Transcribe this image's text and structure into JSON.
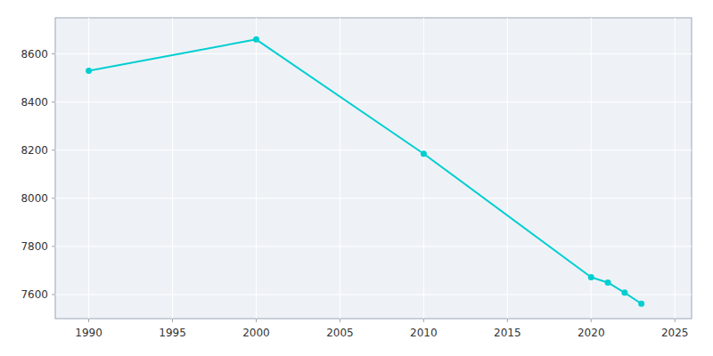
{
  "chart_data": {
    "type": "line",
    "x": [
      1990,
      2000,
      2010,
      2020,
      2021,
      2022,
      2023
    ],
    "values": [
      8530,
      8660,
      8185,
      7672,
      7650,
      7608,
      7562
    ],
    "color": "#00CED1",
    "marker": "circle",
    "xlim": [
      1988,
      2026
    ],
    "ylim": [
      7500,
      8750
    ],
    "xticks": [
      1990,
      1995,
      2000,
      2005,
      2010,
      2015,
      2020,
      2025
    ],
    "yticks": [
      7600,
      7800,
      8000,
      8200,
      8400,
      8600
    ],
    "grid": true
  }
}
